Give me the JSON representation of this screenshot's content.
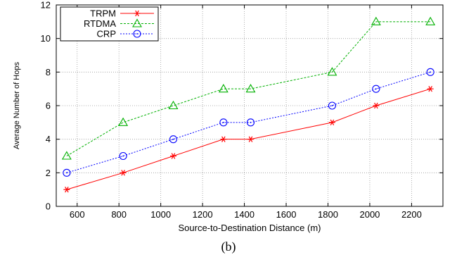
{
  "caption": "(b)",
  "chart_data": {
    "type": "line",
    "xlabel": "Source-to-Destination Distance (m)",
    "ylabel": "Average Number of Hops",
    "xlim": [
      500,
      2350
    ],
    "ylim": [
      0,
      12
    ],
    "xticks": [
      600,
      800,
      1000,
      1200,
      1400,
      1600,
      1800,
      2000,
      2200
    ],
    "yticks": [
      0,
      2,
      4,
      6,
      8,
      10,
      12
    ],
    "grid": true,
    "legend_position": "top-left",
    "series": [
      {
        "name": "TRPM",
        "marker": "asterisk",
        "color": "#ff0000",
        "dash": "solid",
        "x": [
          550,
          820,
          1060,
          1300,
          1430,
          1820,
          2030,
          2290
        ],
        "y": [
          1,
          2,
          3,
          4,
          4,
          5,
          6,
          7
        ]
      },
      {
        "name": "RTDMA",
        "marker": "triangle",
        "color": "#00b000",
        "dash": "dashed",
        "x": [
          550,
          820,
          1060,
          1300,
          1430,
          1820,
          2030,
          2290
        ],
        "y": [
          3,
          5,
          6,
          7,
          7,
          8,
          11,
          11
        ]
      },
      {
        "name": "CRP",
        "marker": "circle-dot",
        "color": "#0000ff",
        "dash": "dotted",
        "x": [
          550,
          820,
          1060,
          1300,
          1430,
          1820,
          2030,
          2290
        ],
        "y": [
          2,
          3,
          4,
          5,
          5,
          6,
          7,
          8
        ]
      }
    ]
  }
}
